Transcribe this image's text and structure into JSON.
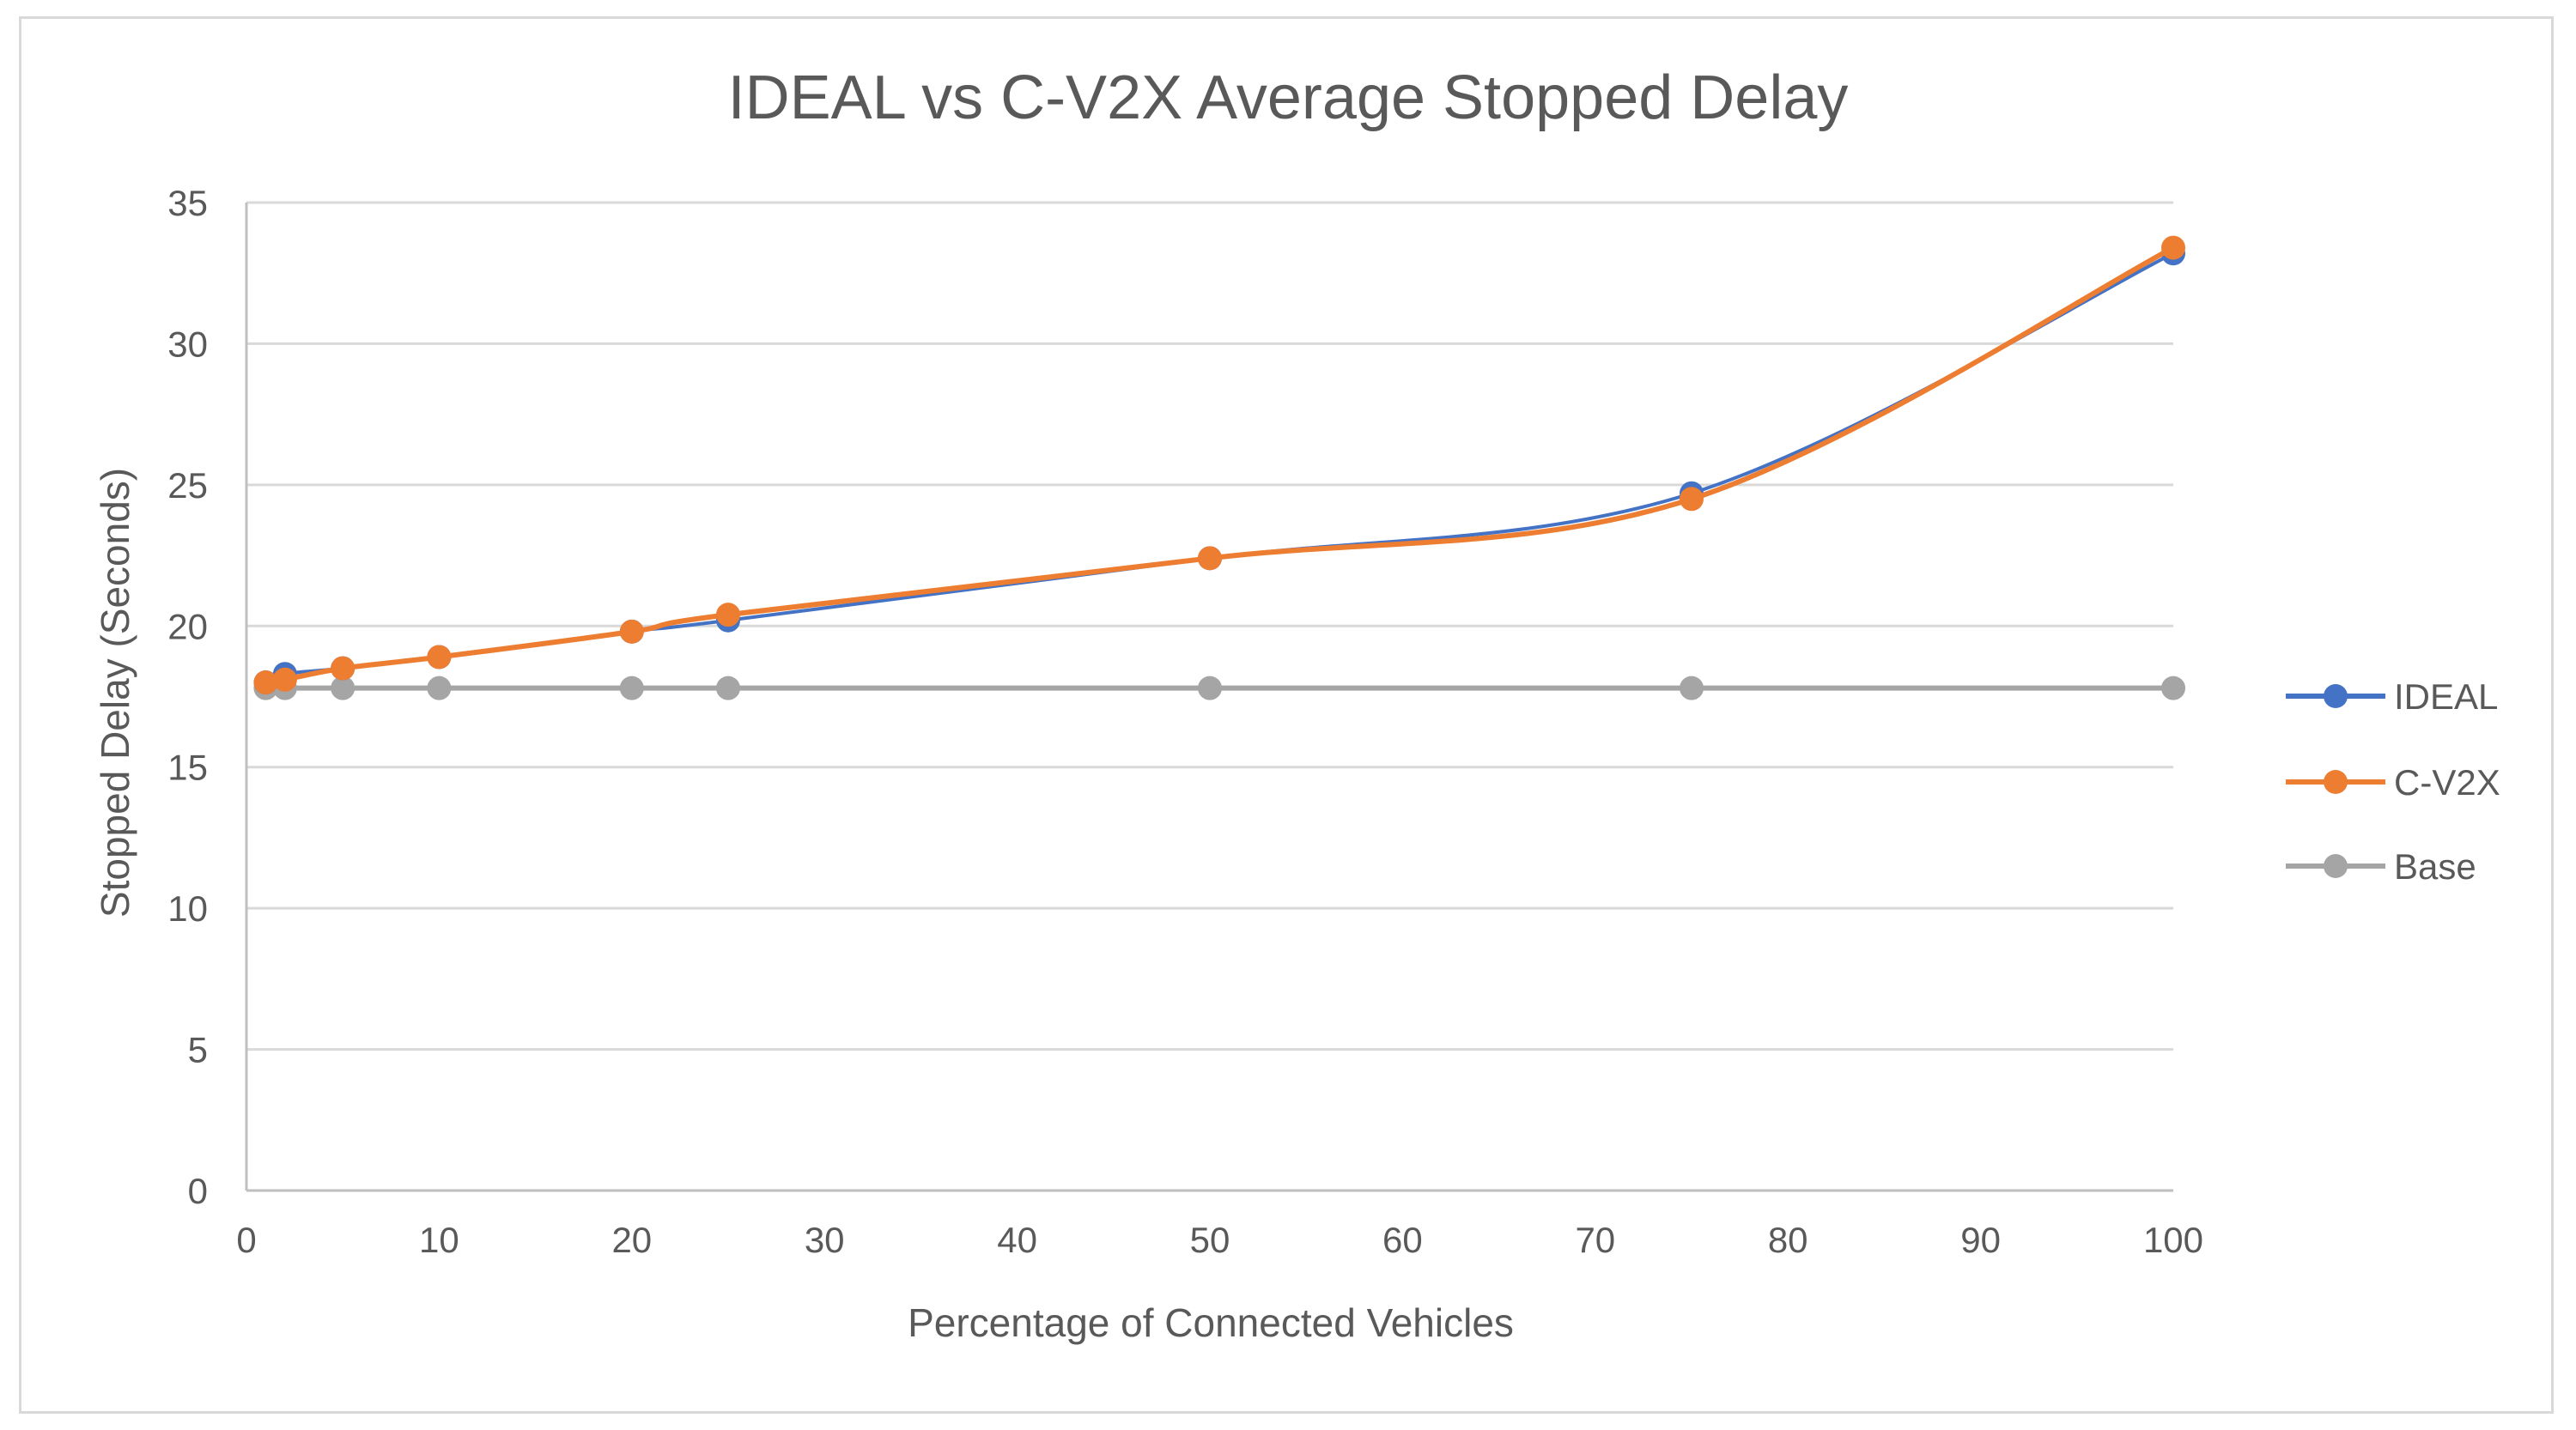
{
  "chart_data": {
    "type": "line",
    "title": "IDEAL vs C-V2X Average Stopped Delay",
    "xlabel": "Percentage of Connected Vehicles",
    "ylabel": "Stopped Delay (Seconds)",
    "xlim": [
      0,
      100
    ],
    "ylim": [
      0,
      35
    ],
    "xticks": [
      0,
      10,
      20,
      30,
      40,
      50,
      60,
      70,
      80,
      90,
      100
    ],
    "yticks": [
      0,
      5,
      10,
      15,
      20,
      25,
      30,
      35
    ],
    "grid": true,
    "legend_position": "right",
    "x": [
      1,
      2,
      5,
      10,
      20,
      25,
      50,
      75,
      100
    ],
    "series": [
      {
        "name": "IDEAL",
        "color": "#4472C4",
        "values": [
          18.0,
          18.3,
          18.5,
          18.9,
          19.8,
          20.2,
          22.4,
          24.7,
          33.2
        ]
      },
      {
        "name": "C-V2X",
        "color": "#ED7D31",
        "values": [
          18.0,
          18.1,
          18.5,
          18.9,
          19.8,
          20.4,
          22.4,
          24.5,
          33.4
        ]
      },
      {
        "name": "Base",
        "color": "#A5A5A5",
        "values": [
          17.8,
          17.8,
          17.8,
          17.8,
          17.8,
          17.8,
          17.8,
          17.8,
          17.8
        ]
      }
    ]
  }
}
